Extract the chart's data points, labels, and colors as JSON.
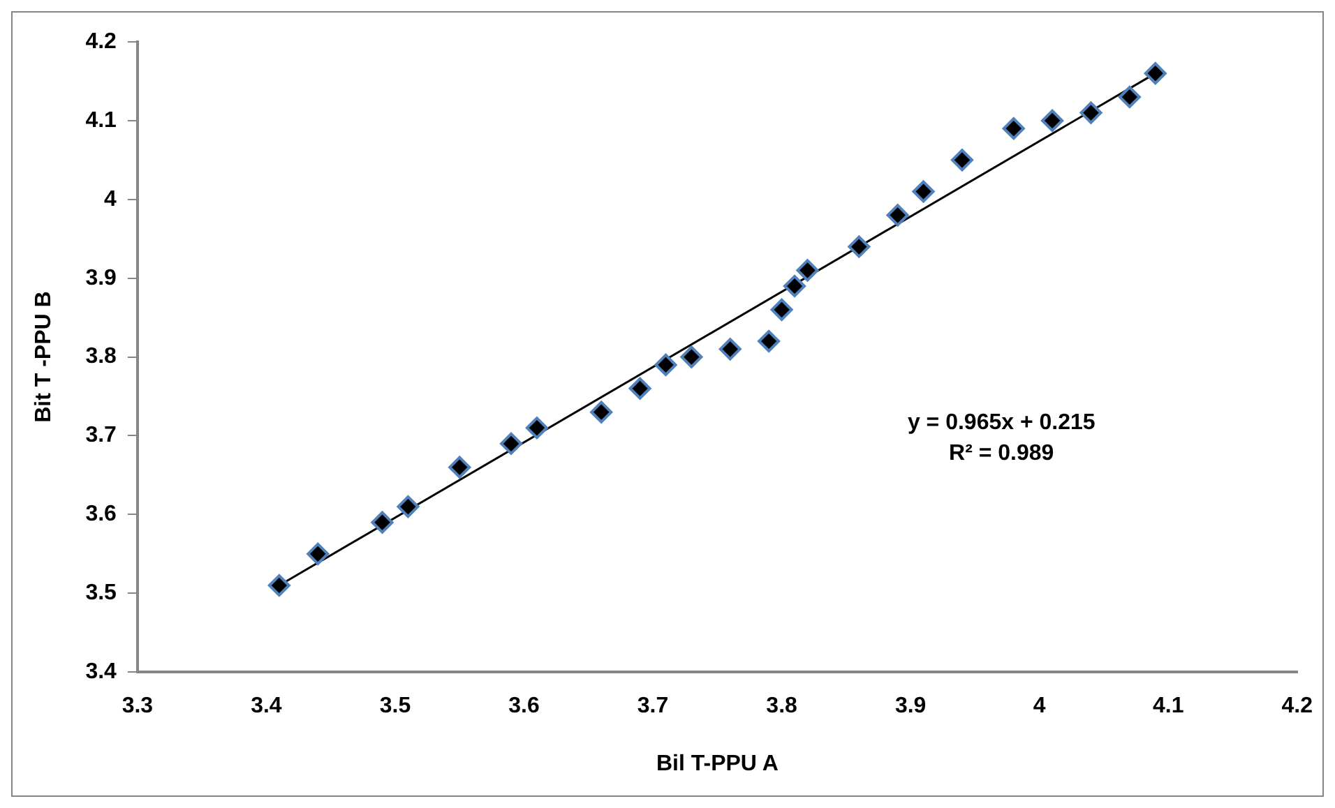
{
  "chart_data": {
    "type": "scatter",
    "xlabel": "Bil T-PPU A",
    "ylabel": "Bit T -PPU B",
    "xlim": [
      3.3,
      4.2
    ],
    "xticks": [
      3.3,
      3.4,
      3.5,
      3.6,
      3.7,
      3.8,
      3.9,
      4,
      4.1,
      4.2
    ],
    "ylim": [
      3.4,
      4.2
    ],
    "yticks": [
      3.4,
      3.5,
      3.6,
      3.7,
      3.8,
      3.9,
      4,
      4.1,
      4.2
    ],
    "grid": false,
    "legend": false,
    "marker": "diamond",
    "annotations": [
      "y = 0.965x + 0.215",
      "R² = 0.989"
    ],
    "series": [
      {
        "type": "scatter",
        "color": "#000000",
        "x": [
          3.41,
          3.44,
          3.49,
          3.51,
          3.55,
          3.59,
          3.61,
          3.66,
          3.69,
          3.71,
          3.73,
          3.76,
          3.79,
          3.8,
          3.81,
          3.82,
          3.86,
          3.89,
          3.91,
          3.94,
          3.98,
          4.01,
          4.04,
          4.07,
          4.09
        ],
        "values": [
          3.51,
          3.55,
          3.59,
          3.61,
          3.66,
          3.69,
          3.71,
          3.73,
          3.76,
          3.79,
          3.8,
          3.81,
          3.82,
          3.86,
          3.89,
          3.91,
          3.94,
          3.98,
          4.01,
          4.05,
          4.09,
          4.1,
          4.11,
          4.13,
          4.16
        ]
      },
      {
        "type": "line",
        "color": "#000000",
        "marker": "none",
        "line_style": "solid",
        "x": [
          3.41,
          4.09
        ],
        "values": [
          3.51,
          4.16
        ]
      }
    ]
  }
}
